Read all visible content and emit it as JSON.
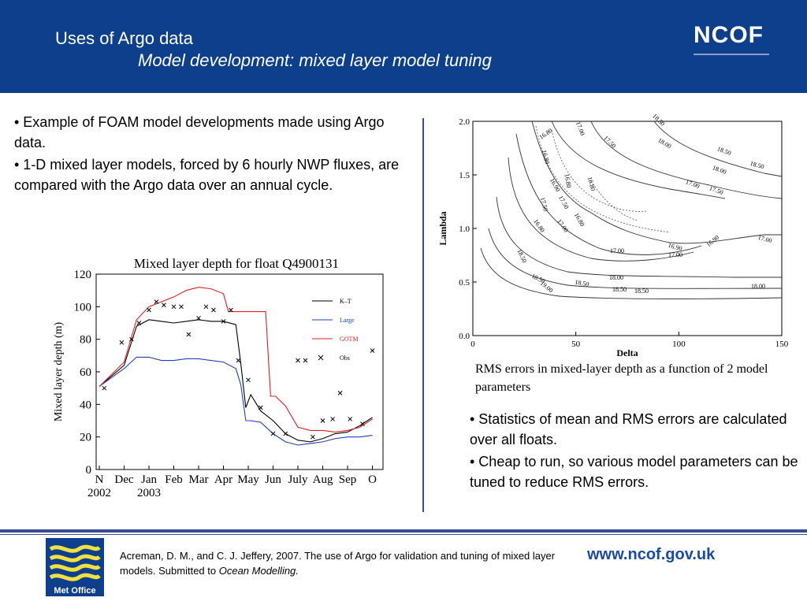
{
  "header": {
    "title": "Uses of Argo data",
    "subtitle": "Model development: mixed layer model tuning",
    "logo_text": "NCOF"
  },
  "left_bullets": [
    "• Example of FOAM model developments made using Argo data.",
    "• 1-D mixed layer models, forced by 6 hourly NWP fluxes, are compared with the Argo data over an annual cycle."
  ],
  "right_bullets": [
    "• Statistics of mean and RMS errors are calculated over all floats.",
    "• Cheap to run, so various model parameters can be tuned to reduce RMS errors."
  ],
  "caption": "RMS errors in mixed-layer depth as a function of 2 model parameters",
  "footer": {
    "reference_text": "Acreman, D. M., and C. J. Jeffery, 2007. The use of Argo for validation and tuning of mixed layer models. Submitted to ",
    "reference_journal": "Ocean Modelling.",
    "url": "www.ncof.gov.uk",
    "logo_text": "Met Office"
  },
  "chart_data": [
    {
      "type": "line",
      "title": "Mixed layer depth for float Q4900131",
      "ylabel": "Mixed layer depth (m)",
      "xlabel": "",
      "ylim": [
        0,
        120
      ],
      "yticks": [
        "0",
        "20",
        "40",
        "60",
        "80",
        "100",
        "120"
      ],
      "xticks": [
        "N",
        "Dec",
        "Jan",
        "Feb",
        "Mar",
        "Apr",
        "May",
        "Jun",
        "July",
        "Aug",
        "Sep",
        "O"
      ],
      "xticks_sub": [
        "2002",
        "",
        "2003"
      ],
      "series": [
        {
          "name": "K–T",
          "color": "#000000",
          "x": [
            0,
            1,
            1.5,
            2,
            2.5,
            3,
            3.5,
            4,
            4.5,
            5,
            5.5,
            5.7,
            5.9,
            6.1,
            6.5,
            7,
            7.5,
            8,
            8.5,
            9,
            9.5,
            10,
            10.5,
            11
          ],
          "y": [
            51,
            64,
            88,
            92,
            91,
            90,
            91,
            92,
            91,
            91,
            89,
            65,
            38,
            46,
            36,
            30,
            22,
            18,
            17,
            19,
            22,
            23,
            27,
            32
          ]
        },
        {
          "name": "Large",
          "color": "#2040c0",
          "x": [
            0,
            1,
            1.5,
            2,
            2.5,
            3,
            3.5,
            4,
            4.5,
            5,
            5.5,
            5.7,
            5.9,
            6.1,
            6.5,
            7,
            7.5,
            8,
            8.5,
            9,
            9.5,
            10,
            10.5,
            11
          ],
          "y": [
            51,
            62,
            69,
            69,
            67,
            67,
            68,
            68,
            67,
            66,
            62,
            52,
            30,
            30,
            29,
            22,
            17,
            15,
            16,
            17,
            19,
            20,
            20,
            21
          ]
        },
        {
          "name": "GOTM",
          "color": "#e02020",
          "x": [
            0,
            1,
            1.5,
            2,
            2.5,
            3,
            3.5,
            4,
            4.5,
            5,
            5.2,
            5.5,
            6.7,
            6.9,
            7.1,
            7.5,
            8,
            8.5,
            9,
            9.5,
            10,
            10.5,
            11
          ],
          "y": [
            51,
            66,
            92,
            100,
            103,
            106,
            110,
            112,
            111,
            108,
            97,
            97,
            97,
            45,
            45,
            39,
            26,
            24,
            24,
            23,
            24,
            26,
            31
          ]
        },
        {
          "name": "Obs",
          "color": "#000000",
          "marker": "x",
          "x": [
            0.2,
            0.9,
            1.3,
            1.6,
            2.0,
            2.3,
            2.6,
            3.0,
            3.3,
            3.6,
            4.0,
            4.3,
            4.6,
            5.0,
            5.3,
            5.6,
            6.0,
            6.5,
            7.0,
            7.5,
            8.0,
            8.3,
            8.6,
            9.0,
            9.4,
            9.7,
            10.1,
            10.6,
            11.0
          ],
          "y": [
            50,
            78,
            80,
            90,
            98,
            103,
            101,
            100,
            100,
            83,
            93,
            100,
            98,
            91,
            98,
            67,
            55,
            38,
            22,
            22,
            67,
            67,
            20,
            30,
            31,
            47,
            31,
            28,
            73
          ]
        }
      ],
      "legend": "top-right"
    },
    {
      "type": "contour",
      "title": "",
      "xlabel": "Delta",
      "ylabel": "Lambda",
      "xlim": [
        0,
        150
      ],
      "ylim": [
        0.0,
        2.0
      ],
      "xticks": [
        "0",
        "50",
        "100",
        "150"
      ],
      "yticks": [
        "0.0",
        "0.5",
        "1.0",
        "1.5",
        "2.0"
      ],
      "contour_labels": [
        "18.50",
        "17.00",
        "16.80",
        "17.50",
        "18.00",
        "18.50",
        "18.50",
        "16.80",
        "16.90",
        "16.80",
        "16.80",
        "18.00",
        "17.00",
        "17.50",
        "17.50",
        "17.50",
        "16.80",
        "16.80",
        "17.00",
        "16.90",
        "16.90",
        "17.00",
        "17.00",
        "17.00",
        "18.50",
        "18.50",
        "18.50",
        "18.00",
        "18.00",
        "18.50",
        "18.50",
        "19.00"
      ]
    }
  ]
}
